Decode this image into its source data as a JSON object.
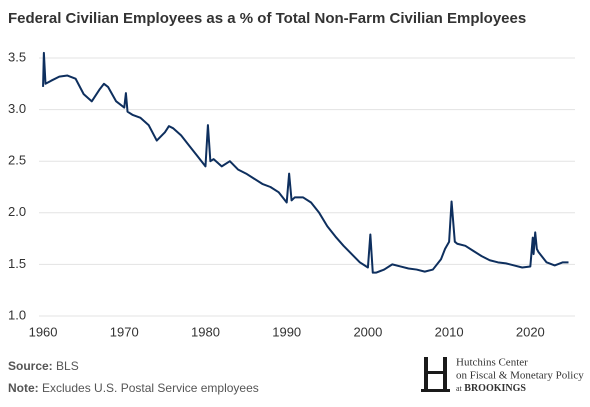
{
  "chart_data": {
    "type": "line",
    "title": "Federal Civilian Employees as a % of Total Non-Farm Civilian Employees",
    "color": "#0e2f5e",
    "grid": true,
    "xlim": [
      1959.5,
      2025.5
    ],
    "xticks": [
      1960,
      1970,
      1980,
      1990,
      2000,
      2010,
      2020
    ],
    "ylim": [
      1,
      3.5
    ],
    "yticks": [
      {
        "value": 1,
        "label": "1.0"
      },
      1.5,
      {
        "value": 2,
        "label": "2.0"
      },
      2.5,
      {
        "value": 3,
        "label": "3.0"
      },
      3.5
    ],
    "x": [
      1960.0,
      1960.1,
      1960.3,
      1961,
      1962,
      1963,
      1964,
      1965,
      1966,
      1967,
      1967.5,
      1968,
      1969,
      1970,
      1970.2,
      1970.4,
      1971,
      1972,
      1973,
      1974,
      1975,
      1975.5,
      1976,
      1977,
      1978,
      1979,
      1980,
      1980.3,
      1980.6,
      1981,
      1982,
      1983,
      1984,
      1985,
      1986,
      1987,
      1988,
      1989,
      1990,
      1990.3,
      1990.6,
      1991,
      1992,
      1993,
      1994,
      1995,
      1996,
      1997,
      1998,
      1999,
      2000,
      2000.3,
      2000.6,
      2001,
      2002,
      2003,
      2004,
      2005,
      2006,
      2007,
      2008,
      2009,
      2009.5,
      2010,
      2010.3,
      2010.7,
      2011,
      2012,
      2013,
      2014,
      2015,
      2016,
      2017,
      2018,
      2019,
      2020,
      2020.3,
      2020.4,
      2020.6,
      2020.8,
      2021,
      2022,
      2023,
      2024,
      2024.7
    ],
    "values": [
      3.22,
      3.55,
      3.25,
      3.28,
      3.32,
      3.33,
      3.3,
      3.15,
      3.08,
      3.2,
      3.25,
      3.22,
      3.08,
      3.02,
      3.16,
      2.98,
      2.95,
      2.92,
      2.85,
      2.7,
      2.78,
      2.84,
      2.82,
      2.75,
      2.65,
      2.55,
      2.45,
      2.85,
      2.5,
      2.52,
      2.45,
      2.5,
      2.42,
      2.38,
      2.33,
      2.28,
      2.25,
      2.2,
      2.1,
      2.38,
      2.12,
      2.15,
      2.15,
      2.1,
      2.0,
      1.87,
      1.77,
      1.68,
      1.6,
      1.52,
      1.47,
      1.79,
      1.42,
      1.42,
      1.45,
      1.5,
      1.48,
      1.46,
      1.45,
      1.43,
      1.45,
      1.55,
      1.65,
      1.72,
      2.11,
      1.72,
      1.7,
      1.68,
      1.63,
      1.58,
      1.54,
      1.52,
      1.51,
      1.49,
      1.47,
      1.48,
      1.76,
      1.6,
      1.81,
      1.65,
      1.62,
      1.52,
      1.49,
      1.52,
      1.52
    ],
    "source_label": "Source:",
    "source": "BLS",
    "note_label": "Note:",
    "note": "Excludes U.S. Postal Service employees",
    "logo": {
      "line1": "Hutchins Center",
      "line2": "on Fiscal & Monetary Policy",
      "at": "at",
      "org": "BROOKINGS"
    }
  }
}
